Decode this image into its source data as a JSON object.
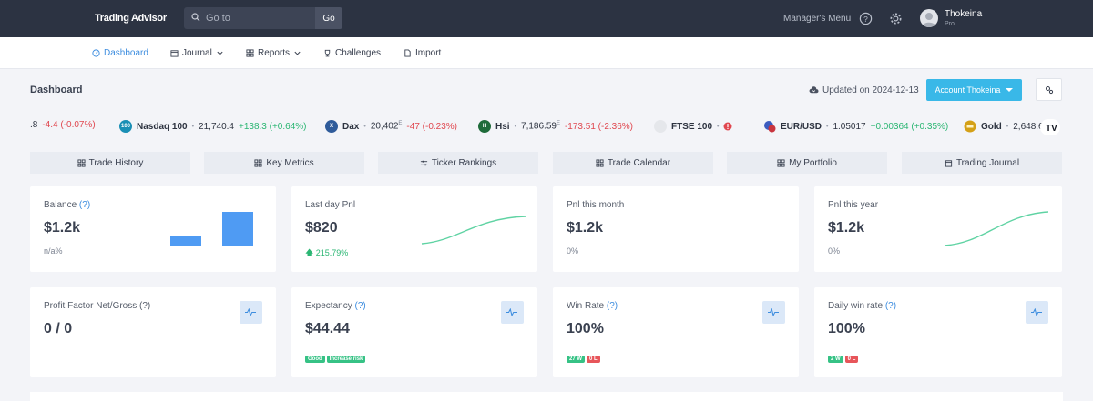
{
  "brand": "Trading Advisor",
  "search": {
    "placeholder": "Go to",
    "button": "Go"
  },
  "topnav": {
    "managers_menu": "Manager's Menu",
    "user_name": "Thokeina",
    "user_role": "Pro"
  },
  "subnav": [
    "Dashboard",
    "Journal",
    "Reports",
    "Challenges",
    "Import"
  ],
  "header": {
    "title": "Dashboard",
    "updated": "Updated on 2024-12-13",
    "account_button": "Account Thokeina"
  },
  "tickers": [
    {
      "name": "",
      "logo": "",
      "logo_color": "",
      "price": ".8",
      "change": "-4.4 (-0.07%)",
      "dir": "neg",
      "sup": ""
    },
    {
      "name": "Nasdaq 100",
      "logo": "100",
      "logo_color": "#1a8fb5",
      "price": "21,740.4",
      "change": "+138.3 (+0.64%)",
      "dir": "pos",
      "sup": ""
    },
    {
      "name": "Dax",
      "logo": "X",
      "logo_color": "#2f5b9a",
      "price": "20,402",
      "change": "-47 (-0.23%)",
      "dir": "neg",
      "sup": "E"
    },
    {
      "name": "Hsi",
      "logo": "H",
      "logo_color": "#1e6b3a",
      "price": "7,186.59",
      "change": "-173.51 (-2.36%)",
      "dir": "neg",
      "sup": "E"
    },
    {
      "name": "FTSE 100",
      "logo": "",
      "logo_color": "#e5e7eb",
      "price": "",
      "change": "",
      "dir": "neg",
      "sup": ""
    },
    {
      "name": "EUR/USD",
      "logo": "",
      "logo_color": "#3b5bbf",
      "price": "1.05017",
      "change": "+0.00364 (+0.35%)",
      "dir": "pos",
      "sup": ""
    },
    {
      "name": "Gold",
      "logo": "",
      "logo_color": "#d4a017",
      "price": "2,648.6",
      "change": "",
      "dir": "pos",
      "sup": ""
    }
  ],
  "tabs": [
    "Trade History",
    "Key Metrics",
    "Ticker Rankings",
    "Trade Calendar",
    "My Portfolio",
    "Trading Journal"
  ],
  "cards_row1": [
    {
      "label": "Balance",
      "q": "(?)",
      "value": "$1.2k",
      "sub": "n/a%"
    },
    {
      "label": "Last day Pnl",
      "q": "",
      "value": "$820",
      "sub": "215.79%"
    },
    {
      "label": "Pnl this month",
      "q": "",
      "value": "$1.2k",
      "sub": "0%"
    },
    {
      "label": "Pnl this year",
      "q": "",
      "value": "$1.2k",
      "sub": "0%"
    }
  ],
  "cards_row2": [
    {
      "label": "Profit Factor Net/Gross",
      "q": "(?)",
      "value": "0 / 0",
      "badges": []
    },
    {
      "label": "Expectancy",
      "q": "(?)",
      "value": "$44.44",
      "badges": [
        {
          "text": "Good",
          "color": "green"
        },
        {
          "text": "Increase risk",
          "color": "green"
        }
      ]
    },
    {
      "label": "Win Rate",
      "q": "(?)",
      "value": "100%",
      "badges": [
        {
          "text": "27 W",
          "color": "green"
        },
        {
          "text": "0 L",
          "color": "red"
        }
      ]
    },
    {
      "label": "Daily win rate",
      "q": "(?)",
      "value": "100%",
      "badges": [
        {
          "text": "2 W",
          "color": "green"
        },
        {
          "text": "0 L",
          "color": "red"
        }
      ]
    }
  ],
  "colors": {
    "accent": "#39b8e8",
    "link": "#3d8ddf",
    "positive": "#2bb673",
    "negative": "#e0474f",
    "navbar": "#2c3342"
  }
}
